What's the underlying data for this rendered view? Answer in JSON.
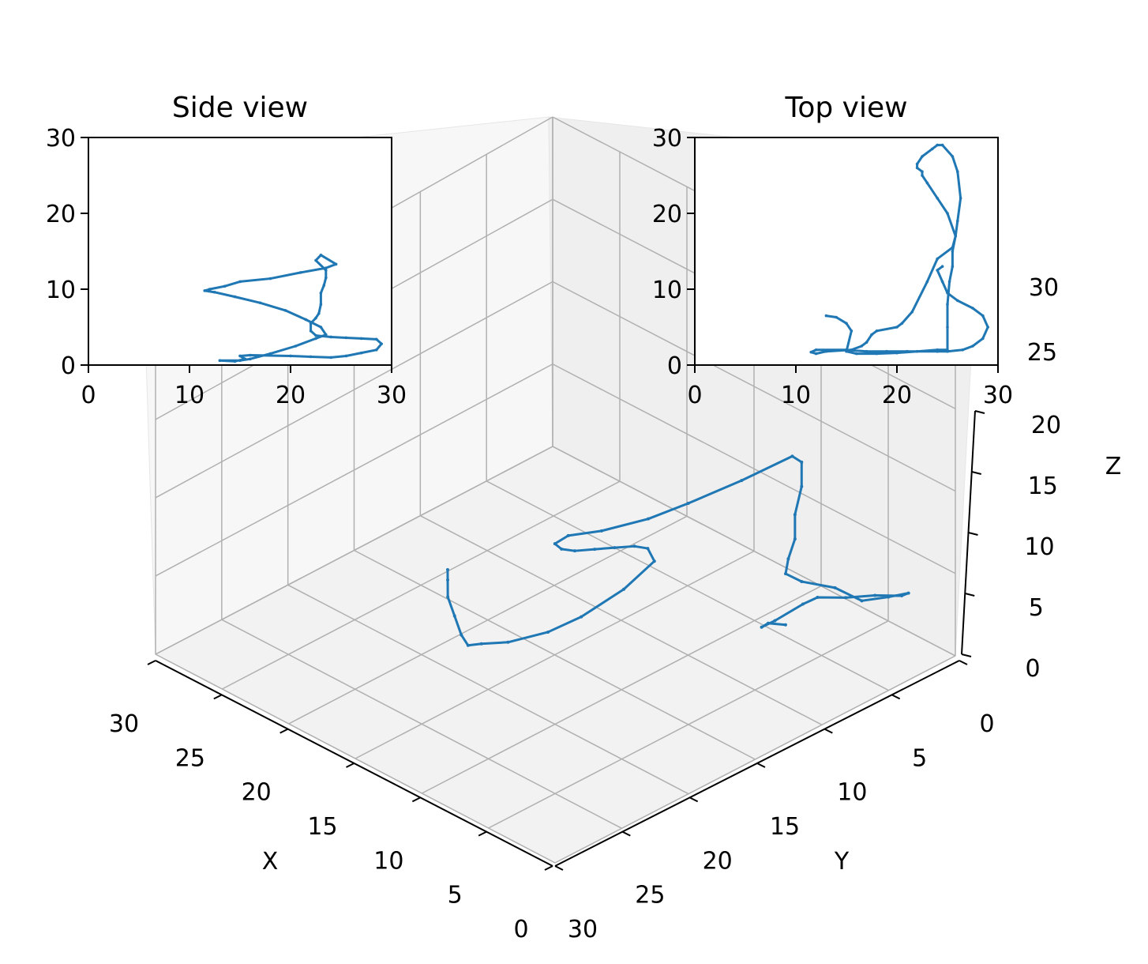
{
  "chart_data": [
    {
      "type": "line3d",
      "title": "",
      "xlabel": "X",
      "ylabel": "Y",
      "zlabel": "Z",
      "xlim": [
        0,
        30
      ],
      "ylim": [
        0,
        30
      ],
      "zlim": [
        0,
        20
      ],
      "xticks": [
        "0",
        "5",
        "10",
        "15",
        "20",
        "25",
        "30"
      ],
      "yticks": [
        "0",
        "5",
        "10",
        "15",
        "20",
        "25",
        "30"
      ],
      "zticks": [
        "0",
        "5",
        "10",
        "15",
        "20"
      ],
      "grid": true,
      "color": "#1f77b4",
      "points": [
        [
          23.5,
          23.8,
          2.0
        ],
        [
          22.5,
          23.5,
          2.4
        ],
        [
          21.5,
          24.0,
          2.8
        ],
        [
          22.0,
          24.5,
          3.2
        ],
        [
          24.0,
          24.6,
          3.4
        ],
        [
          25.5,
          24.2,
          3.0
        ],
        [
          27.0,
          24.8,
          2.6
        ],
        [
          28.5,
          25.5,
          2.4
        ],
        [
          29.0,
          27.0,
          2.8
        ],
        [
          28.5,
          28.0,
          3.6
        ],
        [
          27.0,
          28.0,
          4.0
        ],
        [
          25.5,
          27.5,
          4.2
        ],
        [
          24.5,
          26.5,
          5.0
        ],
        [
          23.0,
          25.5,
          5.6
        ],
        [
          22.5,
          24.8,
          6.0
        ],
        [
          22.5,
          25.0,
          7.0
        ],
        [
          23.0,
          25.0,
          8.0
        ],
        [
          23.0,
          25.0,
          9.5
        ],
        [
          23.5,
          25.0,
          11.0
        ],
        [
          23.5,
          25.0,
          12.5
        ],
        [
          23.0,
          24.8,
          13.0
        ],
        [
          20.0,
          24.0,
          12.5
        ],
        [
          17.0,
          23.0,
          12.0
        ],
        [
          15.0,
          22.0,
          11.5
        ],
        [
          13.0,
          20.5,
          11.0
        ],
        [
          12.0,
          19.0,
          10.5
        ],
        [
          11.5,
          18.5,
          10.0
        ],
        [
          12.5,
          18.0,
          9.0
        ],
        [
          14.0,
          17.5,
          8.0
        ],
        [
          16.0,
          17.0,
          7.0
        ],
        [
          18.0,
          16.5,
          6.0
        ],
        [
          20.0,
          16.0,
          5.0
        ],
        [
          21.5,
          15.5,
          4.0
        ],
        [
          22.0,
          15.5,
          3.0
        ],
        [
          20.0,
          15.2,
          2.0
        ],
        [
          17.0,
          15.0,
          1.5
        ],
        [
          15.0,
          14.5,
          1.2
        ],
        [
          13.0,
          13.5,
          1.0
        ],
        [
          12.0,
          12.5,
          0.9
        ],
        [
          11.5,
          12.0,
          0.8
        ],
        [
          12.0,
          11.0,
          0.8
        ],
        [
          13.0,
          9.5,
          0.9
        ],
        [
          14.0,
          8.0,
          1.0
        ],
        [
          15.0,
          7.0,
          1.2
        ],
        [
          15.5,
          6.5,
          1.4
        ]
      ]
    },
    {
      "type": "line",
      "title": "Side view",
      "xlim": [
        0,
        30
      ],
      "ylim": [
        0,
        30
      ],
      "xticks": [
        "0",
        "10",
        "20",
        "30"
      ],
      "yticks": [
        "0",
        "10",
        "20",
        "30"
      ],
      "color": "#1f77b4",
      "x": [
        13.0,
        14.5,
        15.5,
        15.0,
        16.0,
        20.0,
        22.0,
        24.0,
        25.5,
        27.0,
        28.5,
        29.0,
        28.5,
        27.0,
        25.5,
        24.0,
        22.5,
        22.0,
        22.0,
        22.5,
        22.8,
        23.0,
        23.0,
        23.3,
        23.5,
        23.5,
        22.5,
        23.0,
        24.5,
        23.5,
        21.0,
        18.0,
        15.0,
        13.5,
        12.0,
        11.5,
        12.5,
        14.5,
        17.0,
        19.5,
        21.5,
        23.0,
        23.5,
        22.5,
        20.5,
        18.0,
        16.0,
        15.0,
        13.0
      ],
      "y": [
        0.6,
        0.5,
        0.8,
        1.2,
        1.3,
        1.2,
        1.1,
        1.0,
        1.2,
        1.6,
        2.0,
        2.8,
        3.4,
        3.5,
        3.6,
        3.7,
        3.9,
        4.5,
        5.5,
        6.2,
        6.8,
        8.0,
        9.5,
        10.5,
        11.5,
        12.5,
        13.8,
        14.5,
        13.3,
        12.8,
        12.2,
        11.4,
        11.0,
        10.4,
        10.0,
        9.8,
        9.6,
        9.0,
        8.2,
        7.2,
        6.0,
        5.0,
        4.0,
        3.5,
        2.5,
        1.5,
        0.8,
        0.6,
        0.6
      ]
    },
    {
      "type": "line",
      "title": "Top view",
      "xlim": [
        0,
        30
      ],
      "ylim": [
        0,
        30
      ],
      "xticks": [
        "0",
        "10",
        "20",
        "30"
      ],
      "yticks": [
        "0",
        "10",
        "20",
        "30"
      ],
      "color": "#1f77b4",
      "x": [
        13.0,
        14.0,
        15.0,
        15.5,
        15.0,
        16.0,
        18.0,
        20.0,
        22.0,
        24.0,
        25.0,
        25.0,
        25.0,
        25.2,
        25.5,
        25.5,
        25.8,
        26.0,
        26.3,
        26.0,
        25.5,
        24.5,
        24.0,
        23.5,
        22.5,
        22.0,
        22.0,
        22.5,
        22.5,
        23.0,
        24.0,
        25.0,
        25.8,
        25.5,
        24.0,
        23.0,
        21.5,
        20.5,
        20.0,
        18.0,
        17.5,
        17.0,
        16.5,
        15.5,
        13.0,
        12.0,
        11.5,
        12.0,
        15.0,
        17.0,
        19.0,
        21.0,
        24.0,
        25.0,
        26.5,
        27.5,
        28.5,
        29.0,
        28.5,
        27.5,
        26.0,
        25.0,
        24.5,
        24.0,
        24.5
      ],
      "y": [
        6.5,
        6.3,
        5.5,
        4.5,
        1.8,
        1.5,
        1.5,
        1.6,
        1.8,
        2.0,
        2.0,
        5.0,
        8.0,
        11.0,
        13.0,
        15.0,
        17.0,
        19.0,
        22.0,
        25.5,
        27.5,
        29.0,
        29.0,
        28.5,
        27.5,
        26.5,
        26.0,
        25.5,
        25.0,
        24.0,
        22.0,
        20.0,
        17.0,
        15.5,
        14.0,
        11.0,
        7.0,
        5.5,
        5.0,
        4.5,
        4.0,
        3.0,
        2.5,
        2.0,
        1.8,
        1.5,
        1.7,
        2.0,
        2.0,
        1.8,
        1.8,
        1.8,
        1.8,
        1.8,
        2.0,
        2.5,
        3.5,
        5.0,
        6.5,
        7.5,
        8.5,
        9.5,
        11.0,
        12.5,
        13.0
      ]
    }
  ],
  "labels": {
    "side_title": "Side view",
    "top_title": "Top view",
    "x_axis": "X",
    "y_axis": "Y",
    "z_axis": "Z",
    "extra_ticks": [
      "30",
      "25"
    ]
  }
}
